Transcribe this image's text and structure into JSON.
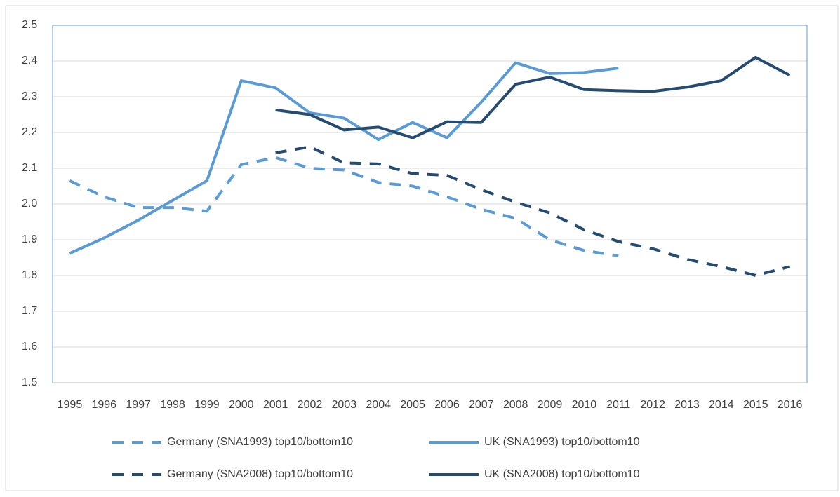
{
  "chart_data": {
    "type": "line",
    "categories": [
      "1995",
      "1996",
      "1997",
      "1998",
      "1999",
      "2000",
      "2001",
      "2002",
      "2003",
      "2004",
      "2005",
      "2006",
      "2007",
      "2008",
      "2009",
      "2010",
      "2011",
      "2012",
      "2013",
      "2014",
      "2015",
      "2016"
    ],
    "series": [
      {
        "name": "Germany (SNA1993) top10/bottom10",
        "color": "#5b9bd5",
        "dashed": true,
        "values": [
          2.065,
          2.02,
          1.99,
          1.99,
          1.98,
          2.11,
          2.13,
          2.1,
          2.095,
          2.06,
          2.05,
          2.02,
          1.985,
          1.96,
          1.9,
          1.87,
          1.855,
          null,
          null,
          null,
          null,
          null
        ]
      },
      {
        "name": "UK (SNA1993) top10/bottom10",
        "color": "#5b9bd5",
        "dashed": false,
        "values": [
          1.862,
          1.905,
          1.955,
          2.01,
          2.065,
          2.345,
          2.325,
          2.255,
          2.24,
          2.18,
          2.228,
          2.185,
          2.285,
          2.395,
          2.365,
          2.368,
          2.38,
          null,
          null,
          null,
          null,
          null
        ]
      },
      {
        "name": "Germany (SNA2008) top10/bottom10",
        "color": "#264b70",
        "dashed": true,
        "values": [
          null,
          null,
          null,
          null,
          null,
          null,
          2.143,
          2.16,
          2.115,
          2.112,
          2.085,
          2.08,
          2.04,
          2.005,
          1.975,
          1.928,
          1.895,
          1.875,
          1.845,
          1.825,
          1.8,
          1.825
        ]
      },
      {
        "name": "UK (SNA2008) top10/bottom10",
        "color": "#264b70",
        "dashed": false,
        "values": [
          null,
          null,
          null,
          null,
          null,
          null,
          2.263,
          2.25,
          2.207,
          2.215,
          2.185,
          2.23,
          2.228,
          2.335,
          2.355,
          2.32,
          2.317,
          2.315,
          2.327,
          2.345,
          2.41,
          2.36
        ]
      }
    ],
    "ylim": [
      1.5,
      2.5
    ],
    "yticks": [
      1.5,
      1.6,
      1.7,
      1.8,
      1.9,
      {
        "value": 2,
        "label": "2.0"
      },
      2.1,
      2.2,
      2.3,
      2.4,
      2.5
    ],
    "grid": true
  }
}
